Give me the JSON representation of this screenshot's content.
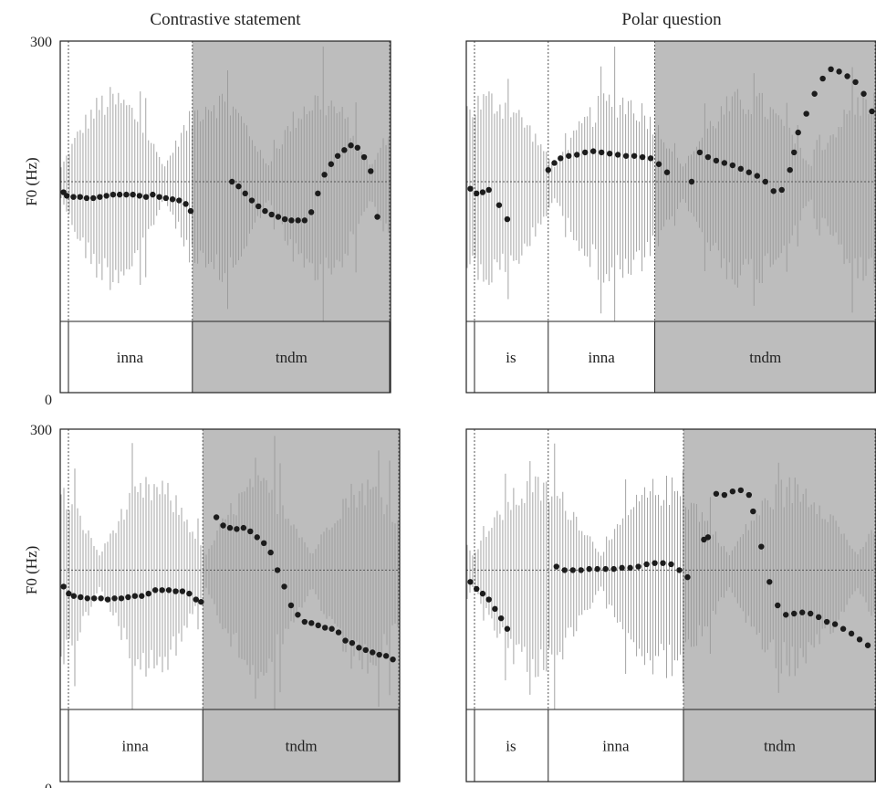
{
  "column_titles": [
    "Contrastive statement",
    "Polar question"
  ],
  "chart_data": [
    {
      "type": "scatter",
      "column": "Contrastive statement",
      "ylabel": "F0 (Hz)",
      "ylim": [
        0,
        300
      ],
      "ytick_labels": [
        "300",
        "0"
      ],
      "x_range": [
        0,
        1
      ],
      "segments": [
        {
          "label": "inna",
          "start": 0.0,
          "end": 0.4,
          "shaded": false
        },
        {
          "label": "tndm",
          "start": 0.4,
          "end": 1.0,
          "shaded": true
        }
      ],
      "f0_x": [
        0.01,
        0.02,
        0.04,
        0.06,
        0.08,
        0.1,
        0.12,
        0.14,
        0.16,
        0.18,
        0.2,
        0.22,
        0.24,
        0.26,
        0.28,
        0.3,
        0.32,
        0.34,
        0.36,
        0.38,
        0.395,
        0.52,
        0.54,
        0.56,
        0.58,
        0.6,
        0.62,
        0.64,
        0.66,
        0.68,
        0.7,
        0.72,
        0.74,
        0.76,
        0.78,
        0.8,
        0.82,
        0.84,
        0.86,
        0.88,
        0.9,
        0.92,
        0.94,
        0.96
      ],
      "f0_y": [
        171,
        168,
        167,
        167,
        166,
        166,
        167,
        168,
        169,
        169,
        169,
        169,
        168,
        167,
        169,
        167,
        166,
        165,
        164,
        161,
        155,
        180,
        176,
        170,
        164,
        159,
        155,
        152,
        150,
        148,
        147,
        147,
        147,
        154,
        170,
        186,
        195,
        202,
        207,
        211,
        209,
        201,
        189,
        150
      ]
    },
    {
      "type": "scatter",
      "column": "Polar question",
      "ylabel": "",
      "ylim": [
        0,
        300
      ],
      "ytick_labels": [
        "",
        ""
      ],
      "x_range": [
        0,
        1
      ],
      "segments": [
        {
          "label": "is",
          "start": 0.0,
          "end": 0.2,
          "shaded": false
        },
        {
          "label": "inna",
          "start": 0.2,
          "end": 0.46,
          "shaded": false
        },
        {
          "label": "tndm",
          "start": 0.46,
          "end": 1.0,
          "shaded": true
        }
      ],
      "f0_x": [
        0.01,
        0.025,
        0.04,
        0.055,
        0.08,
        0.1,
        0.2,
        0.215,
        0.23,
        0.25,
        0.27,
        0.29,
        0.31,
        0.33,
        0.35,
        0.37,
        0.39,
        0.41,
        0.43,
        0.45,
        0.47,
        0.49,
        0.55,
        0.57,
        0.59,
        0.61,
        0.63,
        0.65,
        0.67,
        0.69,
        0.71,
        0.73,
        0.75,
        0.77,
        0.79,
        0.8,
        0.81,
        0.83,
        0.85,
        0.87,
        0.89,
        0.91,
        0.93,
        0.95,
        0.97,
        0.99
      ],
      "f0_y": [
        174,
        170,
        171,
        173,
        160,
        148,
        190,
        196,
        200,
        202,
        203,
        205,
        206,
        205,
        204,
        203,
        202,
        202,
        201,
        200,
        195,
        188,
        180,
        205,
        201,
        198,
        196,
        194,
        191,
        188,
        185,
        180,
        172,
        173,
        190,
        205,
        222,
        238,
        255,
        268,
        276,
        274,
        270,
        265,
        255,
        240
      ]
    },
    {
      "type": "scatter",
      "column": "Contrastive statement",
      "ylabel": "F0 (Hz)",
      "ylim": [
        0,
        300
      ],
      "ytick_labels": [
        "300",
        "0"
      ],
      "x_range": [
        0,
        1
      ],
      "segments": [
        {
          "label": "inna",
          "start": 0.0,
          "end": 0.42,
          "shaded": false
        },
        {
          "label": "tndm",
          "start": 0.42,
          "end": 1.0,
          "shaded": true
        }
      ],
      "f0_x": [
        0.01,
        0.025,
        0.04,
        0.06,
        0.08,
        0.1,
        0.12,
        0.14,
        0.16,
        0.18,
        0.2,
        0.22,
        0.24,
        0.26,
        0.28,
        0.3,
        0.32,
        0.34,
        0.36,
        0.38,
        0.4,
        0.415,
        0.46,
        0.48,
        0.5,
        0.52,
        0.54,
        0.56,
        0.58,
        0.6,
        0.62,
        0.64,
        0.66,
        0.68,
        0.7,
        0.72,
        0.74,
        0.76,
        0.78,
        0.8,
        0.82,
        0.84,
        0.86,
        0.88,
        0.9,
        0.92,
        0.94,
        0.96,
        0.98
      ],
      "f0_y": [
        166,
        160,
        158,
        157,
        156,
        156,
        156,
        155,
        156,
        156,
        157,
        158,
        158,
        160,
        163,
        163,
        163,
        162,
        162,
        160,
        155,
        153,
        225,
        218,
        216,
        215,
        216,
        213,
        208,
        203,
        195,
        180,
        166,
        150,
        142,
        136,
        135,
        133,
        131,
        130,
        127,
        120,
        118,
        114,
        112,
        110,
        108,
        107,
        104
      ]
    },
    {
      "type": "scatter",
      "column": "Polar question",
      "ylabel": "",
      "ylim": [
        0,
        300
      ],
      "ytick_labels": [
        "",
        ""
      ],
      "x_range": [
        0,
        1
      ],
      "segments": [
        {
          "label": "is",
          "start": 0.0,
          "end": 0.2,
          "shaded": false
        },
        {
          "label": "inna",
          "start": 0.2,
          "end": 0.53,
          "shaded": false
        },
        {
          "label": "tndm",
          "start": 0.53,
          "end": 1.0,
          "shaded": true
        }
      ],
      "f0_x": [
        0.01,
        0.025,
        0.04,
        0.055,
        0.07,
        0.085,
        0.1,
        0.22,
        0.24,
        0.26,
        0.28,
        0.3,
        0.32,
        0.34,
        0.36,
        0.38,
        0.4,
        0.42,
        0.44,
        0.46,
        0.48,
        0.5,
        0.52,
        0.54,
        0.58,
        0.59,
        0.61,
        0.63,
        0.65,
        0.67,
        0.69,
        0.7,
        0.72,
        0.74,
        0.76,
        0.78,
        0.8,
        0.82,
        0.84,
        0.86,
        0.88,
        0.9,
        0.92,
        0.94,
        0.96,
        0.98
      ],
      "f0_y": [
        170,
        164,
        160,
        155,
        147,
        139,
        130,
        183,
        180,
        180,
        180,
        181,
        181,
        181,
        181,
        182,
        182,
        183,
        185,
        186,
        186,
        185,
        180,
        174,
        206,
        208,
        245,
        244,
        247,
        248,
        244,
        230,
        200,
        170,
        150,
        142,
        143,
        144,
        143,
        140,
        136,
        134,
        130,
        126,
        121,
        116
      ]
    }
  ]
}
